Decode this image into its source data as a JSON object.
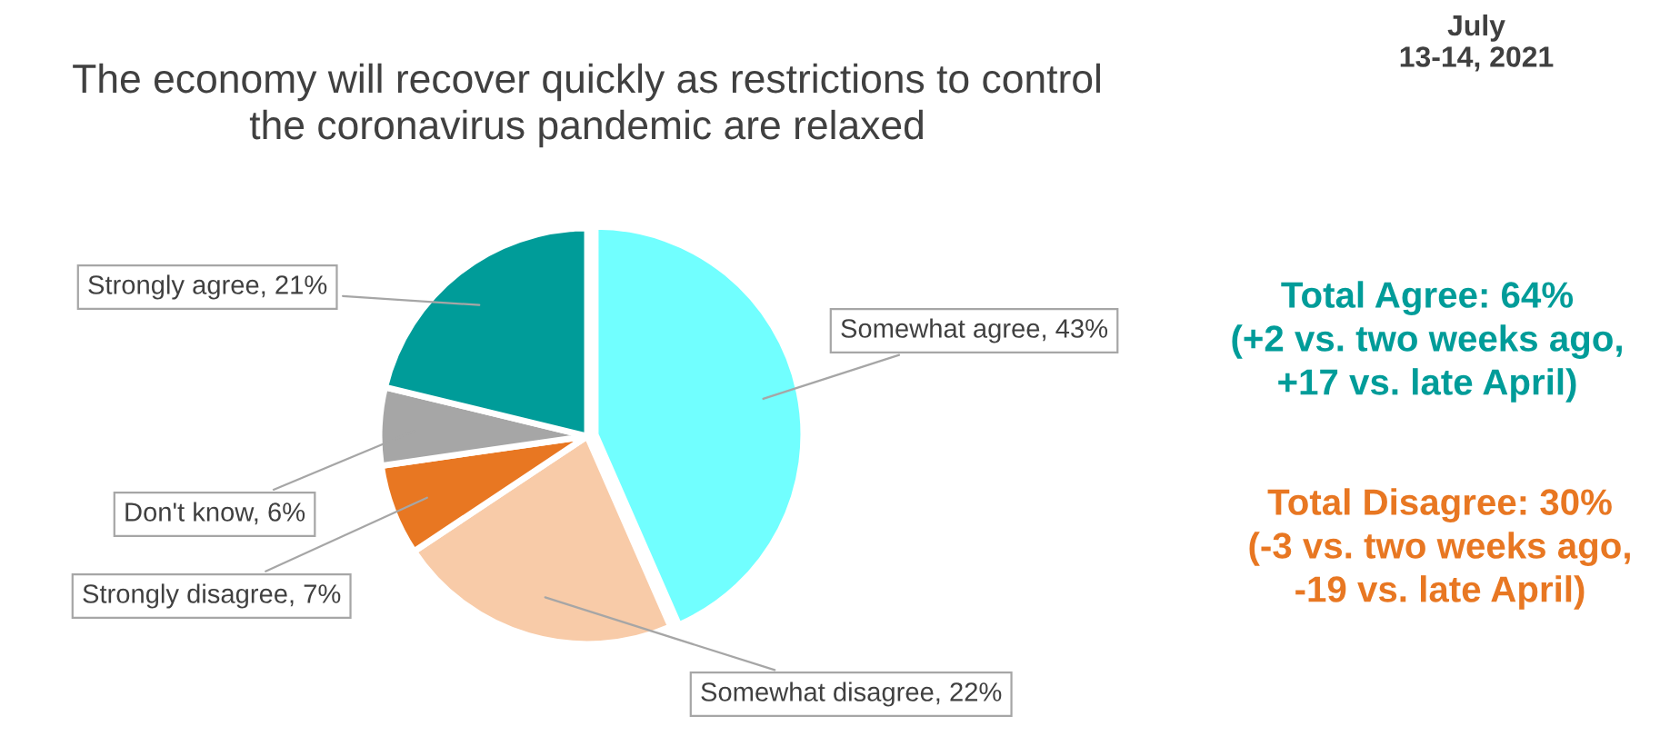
{
  "chart_data": {
    "type": "pie",
    "title": "The economy will recover quickly as restrictions to control\nthe coronavirus pandemic are relaxed",
    "subtitle": "July\n13-14, 2021",
    "categories": [
      "Somewhat agree",
      "Somewhat disagree",
      "Strongly disagree",
      "Don't know",
      "Strongly agree"
    ],
    "values": [
      43,
      22,
      7,
      6,
      21
    ],
    "colors": [
      "#71ffff",
      "#f8cba8",
      "#e87722",
      "#a6a6a6",
      "#009c99"
    ],
    "value_labels": [
      "43%",
      "22%",
      "7%",
      "6%",
      "21%"
    ],
    "annotations": [
      "Total Agree: 64%\n(+2 vs. two weeks ago,\n+17 vs. late April)",
      "Total Disagree: 30%\n(-3 vs. two weeks ago,\n-19 vs. late April)"
    ],
    "legend": false
  }
}
